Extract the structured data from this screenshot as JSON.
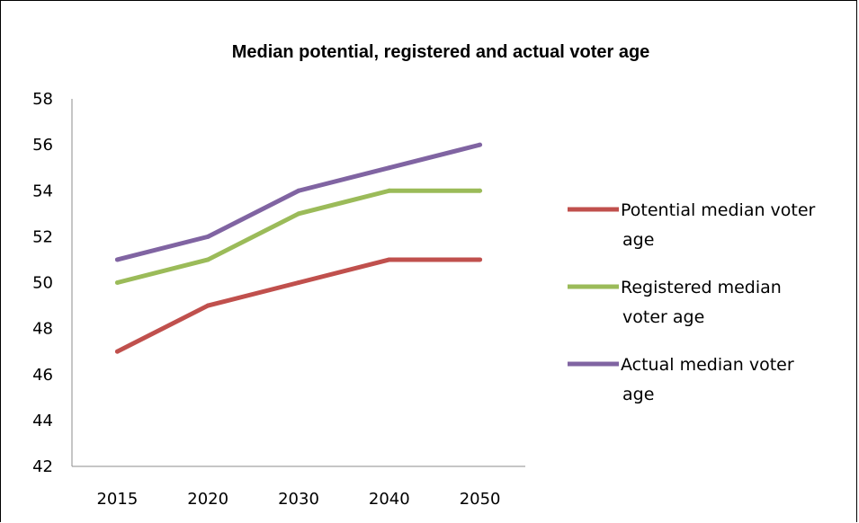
{
  "chart_data": {
    "type": "line",
    "title": "Median potential, registered and actual voter age",
    "xlabel": "",
    "ylabel": "",
    "categories": [
      "2015",
      "2020",
      "2030",
      "2040",
      "2050"
    ],
    "ylim": [
      42,
      58
    ],
    "yticks": [
      42,
      44,
      46,
      48,
      50,
      52,
      54,
      56,
      58
    ],
    "grid": false,
    "legend_position": "right",
    "series": [
      {
        "name": "Potential median voter age",
        "color": "#c0504d",
        "values": [
          47,
          49,
          50,
          51,
          51
        ],
        "legend_lines": [
          "Potential median voter",
          "age"
        ]
      },
      {
        "name": "Registered median voter age",
        "color": "#9bbb59",
        "values": [
          50,
          51,
          53,
          54,
          54
        ],
        "legend_lines": [
          "Registered median",
          "voter age"
        ]
      },
      {
        "name": "Actual median voter age",
        "color": "#8064a2",
        "values": [
          51,
          52,
          54,
          55,
          56
        ],
        "legend_lines": [
          "Actual median voter",
          "age"
        ]
      }
    ]
  }
}
